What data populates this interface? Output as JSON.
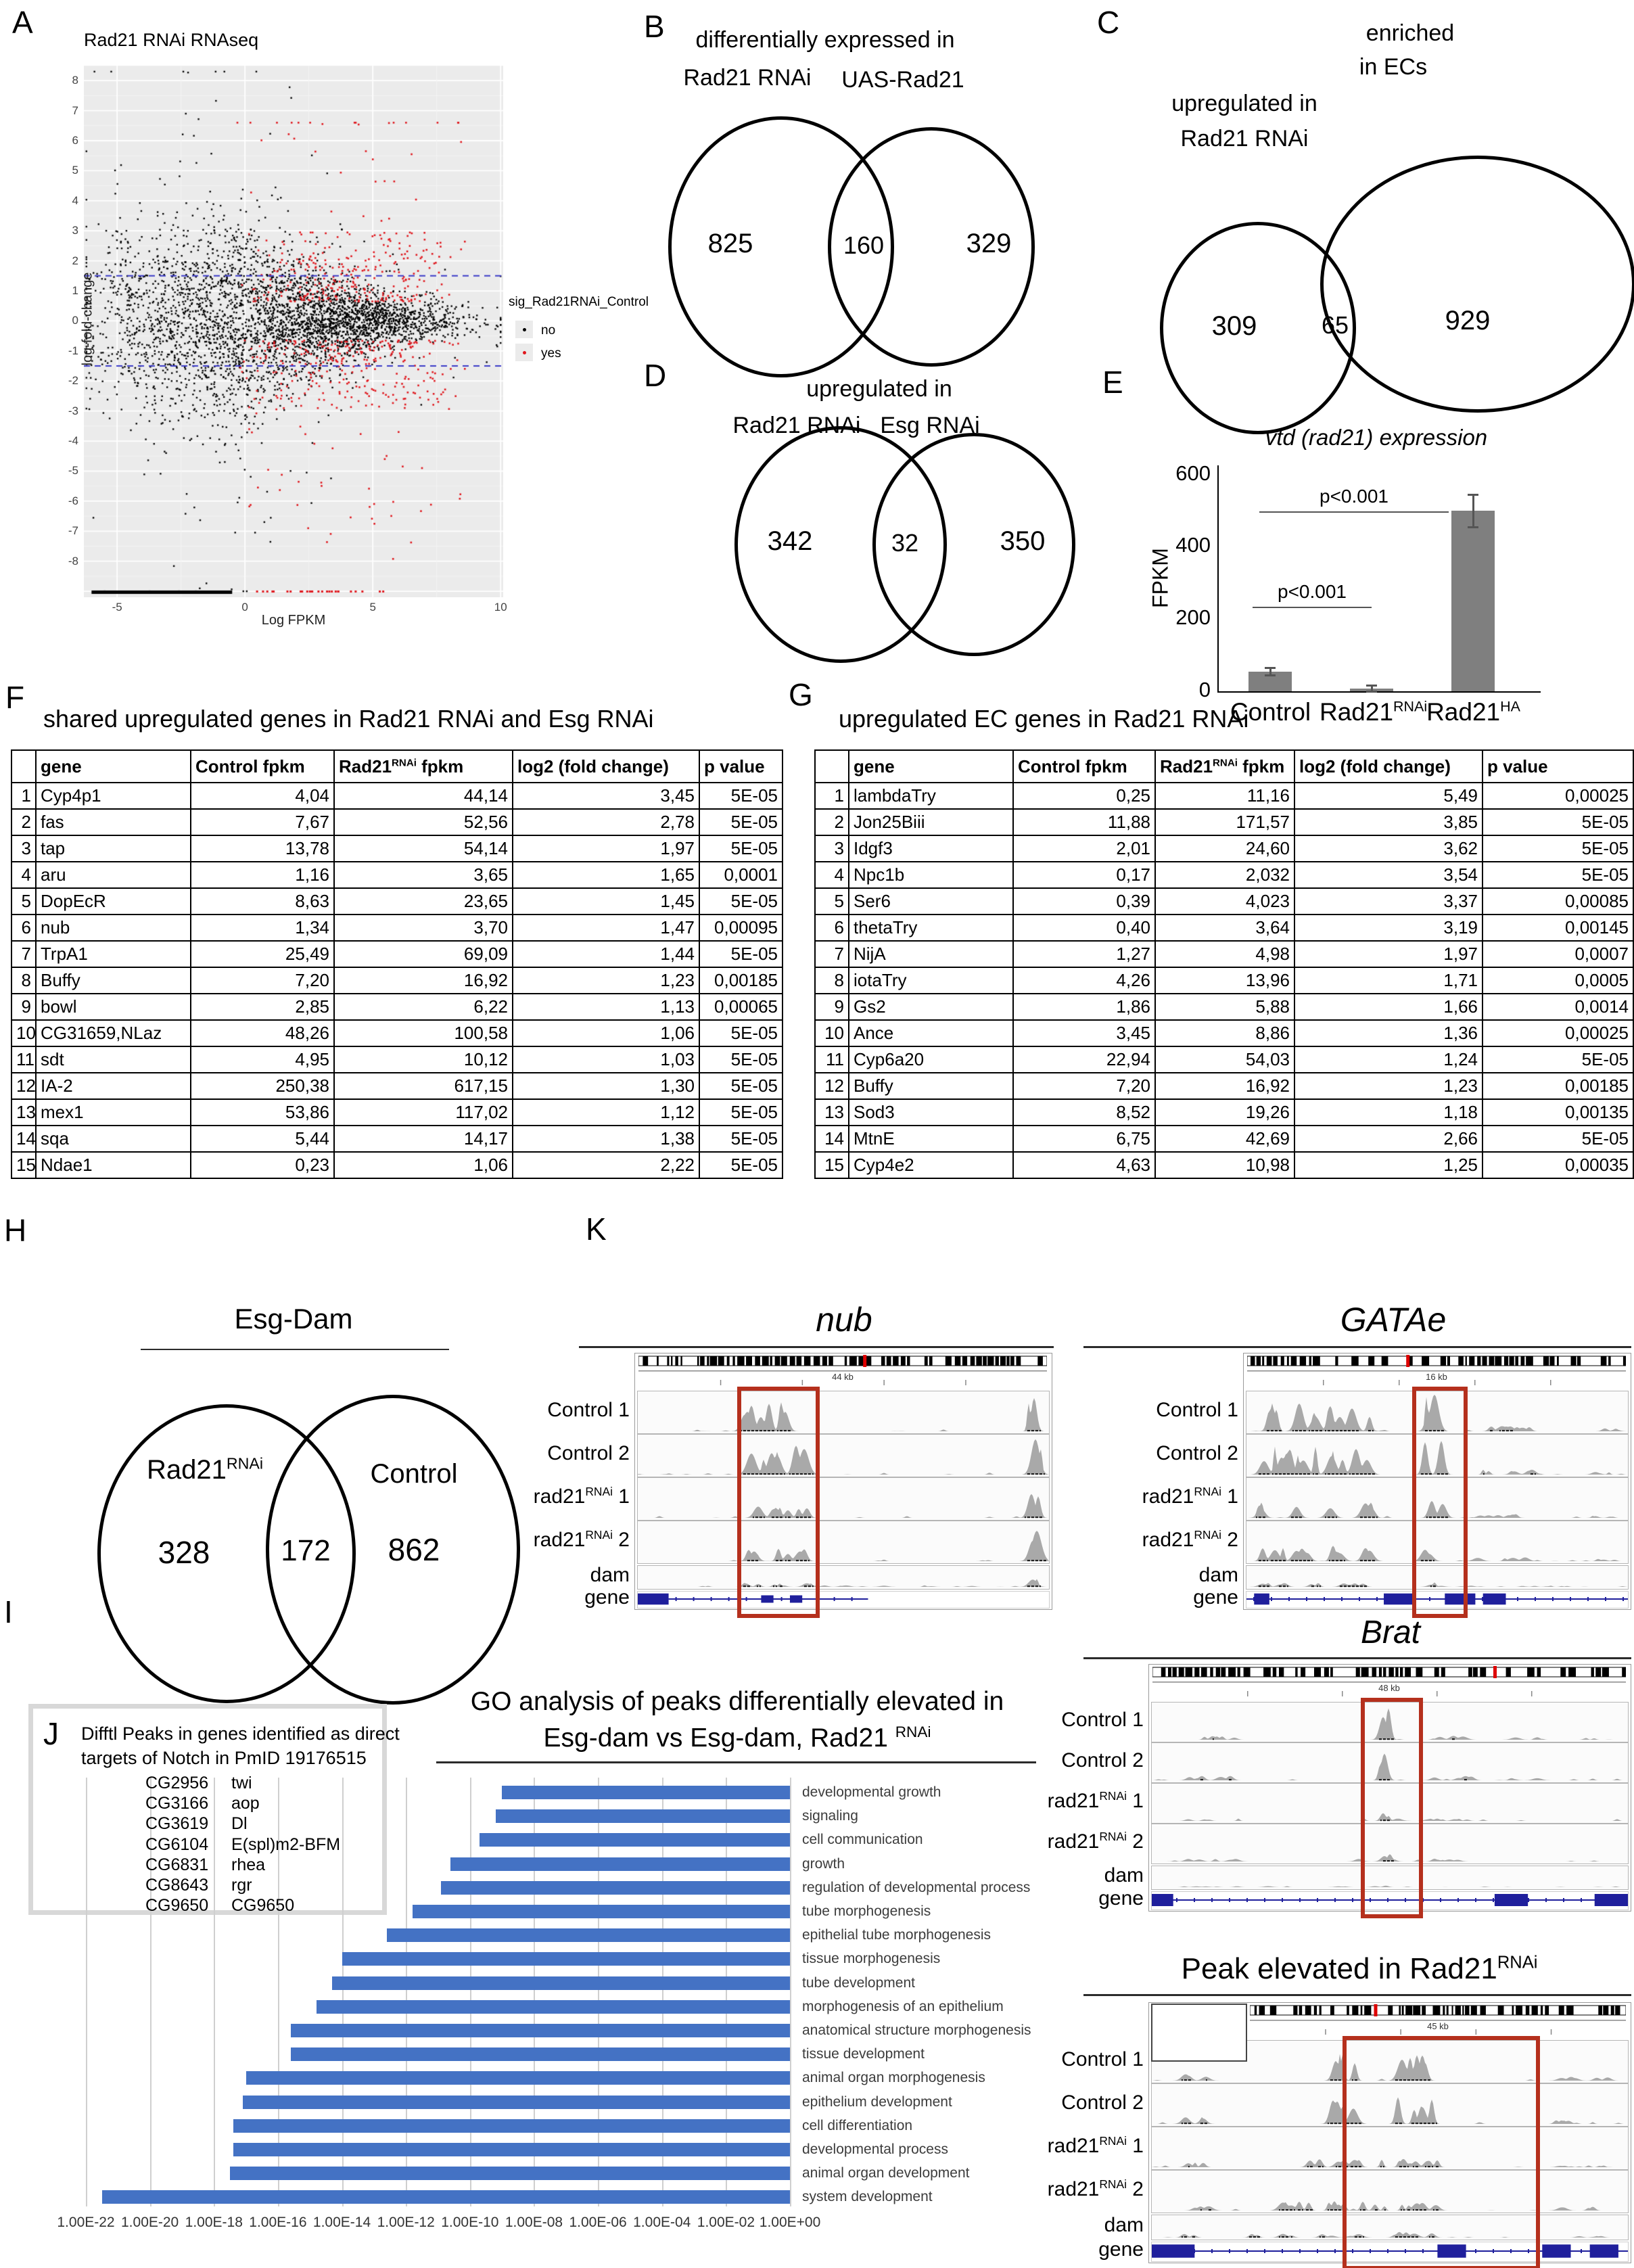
{
  "colors": {
    "go_bar": "#4472c4",
    "scatter_sig": "#e0161c",
    "scatter_ns": "#000000",
    "bar_gray": "#7f7f7f",
    "highlight_red": "#b5301d",
    "gene_blue": "#1f1f9c"
  },
  "panelA": {
    "label": "A",
    "title": "Rad21 RNAi RNAseq",
    "xlabel": "Log FPKM",
    "ylabel": "log-fold-change",
    "x_ticks": [
      -5,
      0,
      5,
      10
    ],
    "y_ticks": [
      8,
      7,
      6,
      5,
      4,
      3,
      2,
      1,
      0,
      -1,
      -2,
      -3,
      -4,
      -5,
      -6,
      -7,
      -8
    ],
    "threshold_lines": [
      1.5,
      -1.5
    ],
    "legend": {
      "title": "sig_Rad21RNAi_Control",
      "items": [
        {
          "label": "no",
          "color": "#000000"
        },
        {
          "label": "yes",
          "color": "#e0161c"
        }
      ]
    }
  },
  "panelB": {
    "label": "B",
    "title": "differentially expressed in",
    "left_label": "Rad21 RNAi",
    "right_label": "UAS-Rad21",
    "left_count": "825",
    "overlap_count": "160",
    "right_count": "329"
  },
  "panelC": {
    "label": "C",
    "right_title_line1": "enriched",
    "right_title_line2": "in ECs",
    "left_title_line1": "upregulated in",
    "left_title_line2": "Rad21 RNAi",
    "left_count": "309",
    "overlap_count": "65",
    "right_count": "929"
  },
  "panelD": {
    "label": "D",
    "title": "upregulated in",
    "left_label": "Rad21 RNAi",
    "right_label": "Esg RNAi",
    "left_count": "342",
    "overlap_count": "32",
    "right_count": "350"
  },
  "panelE": {
    "label": "E",
    "title": "vtd (rad21) expression",
    "ylabel": "FPKM",
    "y_ticks": [
      600,
      400,
      200,
      0
    ],
    "bars": [
      {
        "name": "Control",
        "sup": "",
        "value": 55,
        "error": 10
      },
      {
        "name": "Rad21",
        "sup": "RNAi",
        "value": 8,
        "error": 8
      },
      {
        "name": "Rad21",
        "sup": "HA",
        "value": 500,
        "error": 45
      }
    ],
    "sig_labels": [
      "p<0.001",
      "p<0.001"
    ]
  },
  "tableF": {
    "label": "F",
    "title": "shared upregulated genes in Rad21 RNAi and Esg RNAi",
    "headers": [
      {
        "pre": "gene"
      },
      {
        "pre": "Control fpkm"
      },
      {
        "pre": "Rad21",
        "sup": "RNAi",
        "post": " fpkm"
      },
      {
        "pre": "log2 (fold change)"
      },
      {
        "pre": "p value"
      }
    ],
    "rows": [
      [
        "1",
        "Cyp4p1",
        "4,04",
        "44,14",
        "3,45",
        "5E-05"
      ],
      [
        "2",
        "fas",
        "7,67",
        "52,56",
        "2,78",
        "5E-05"
      ],
      [
        "3",
        "tap",
        "13,78",
        "54,14",
        "1,97",
        "5E-05"
      ],
      [
        "4",
        "aru",
        "1,16",
        "3,65",
        "1,65",
        "0,0001"
      ],
      [
        "5",
        "DopEcR",
        "8,63",
        "23,65",
        "1,45",
        "5E-05"
      ],
      [
        "6",
        "nub",
        "1,34",
        "3,70",
        "1,47",
        "0,00095"
      ],
      [
        "7",
        "TrpA1",
        "25,49",
        "69,09",
        "1,44",
        "5E-05"
      ],
      [
        "8",
        "Buffy",
        "7,20",
        "16,92",
        "1,23",
        "0,00185"
      ],
      [
        "9",
        "bowl",
        "2,85",
        "6,22",
        "1,13",
        "0,00065"
      ],
      [
        "10",
        "CG31659,NLaz",
        "48,26",
        "100,58",
        "1,06",
        "5E-05"
      ],
      [
        "11",
        "sdt",
        "4,95",
        "10,12",
        "1,03",
        "5E-05"
      ],
      [
        "12",
        "IA-2",
        "250,38",
        "617,15",
        "1,30",
        "5E-05"
      ],
      [
        "13",
        "mex1",
        "53,86",
        "117,02",
        "1,12",
        "5E-05"
      ],
      [
        "14",
        "sqa",
        "5,44",
        "14,17",
        "1,38",
        "5E-05"
      ],
      [
        "15",
        "Ndae1",
        "0,23",
        "1,06",
        "2,22",
        "5E-05"
      ]
    ]
  },
  "tableG": {
    "label": "G",
    "title": "upregulated EC genes in Rad21 RNAi",
    "headers": [
      {
        "pre": "gene"
      },
      {
        "pre": "Control fpkm"
      },
      {
        "pre": "Rad21",
        "sup": "RNAi",
        "post": " fpkm"
      },
      {
        "pre": "log2 (fold change)"
      },
      {
        "pre": "p value"
      }
    ],
    "rows": [
      [
        "1",
        "lambdaTry",
        "0,25",
        "11,16",
        "5,49",
        "0,00025"
      ],
      [
        "2",
        "Jon25Biii",
        "11,88",
        "171,57",
        "3,85",
        "5E-05"
      ],
      [
        "3",
        "Idgf3",
        "2,01",
        "24,60",
        "3,62",
        "5E-05"
      ],
      [
        "4",
        "Npc1b",
        "0,17",
        "2,032",
        "3,54",
        "5E-05"
      ],
      [
        "5",
        "Ser6",
        "0,39",
        "4,023",
        "3,37",
        "0,00085"
      ],
      [
        "6",
        "thetaTry",
        "0,40",
        "3,64",
        "3,19",
        "0,00145"
      ],
      [
        "7",
        "NijA",
        "1,27",
        "4,98",
        "1,97",
        "0,0007"
      ],
      [
        "8",
        "iotaTry",
        "4,26",
        "13,96",
        "1,71",
        "0,0005"
      ],
      [
        "9",
        "Gs2",
        "1,86",
        "5,88",
        "1,66",
        "0,0014"
      ],
      [
        "10",
        "Ance",
        "3,45",
        "8,86",
        "1,36",
        "0,00025"
      ],
      [
        "11",
        "Cyp6a20",
        "22,94",
        "54,03",
        "1,24",
        "5E-05"
      ],
      [
        "12",
        "Buffy",
        "7,20",
        "16,92",
        "1,23",
        "0,00185"
      ],
      [
        "13",
        "Sod3",
        "8,52",
        "19,26",
        "1,18",
        "0,00135"
      ],
      [
        "14",
        "MtnE",
        "6,75",
        "42,69",
        "2,66",
        "5E-05"
      ],
      [
        "15",
        "Cyp4e2",
        "4,63",
        "10,98",
        "1,25",
        "0,00035"
      ]
    ]
  },
  "panelH": {
    "label": "H",
    "title": "Esg-Dam",
    "left_label_pre": "Rad21",
    "left_label_sup": "RNAi",
    "right_label": "Control",
    "left_count": "328",
    "overlap_count": "172",
    "right_count": "862"
  },
  "panelK": {
    "label": "K",
    "highlight_color": "#b5301d",
    "track_labels": [
      {
        "text": "Control 1"
      },
      {
        "text": "Control 2"
      },
      {
        "pre": "rad21",
        "sup": "RNAi",
        "post": " 1"
      },
      {
        "pre": "rad21",
        "sup": "RNAi",
        "post": " 2"
      },
      {
        "text": "dam"
      },
      {
        "text": "gene"
      }
    ],
    "browsers": [
      {
        "title": "nub",
        "italic": true,
        "kb_label": "44 kb"
      },
      {
        "title": "GATAe",
        "italic": true,
        "kb_label": "16 kb"
      },
      {
        "title": "Brat",
        "italic": true,
        "kb_label": "48 kb"
      },
      {
        "title_pre": "Peak elevated in Rad21",
        "title_sup": "RNAi",
        "italic": false,
        "kb_label": "45 kb"
      }
    ]
  },
  "panelI": {
    "label": "I",
    "title_line1": "GO analysis of peaks differentially elevated in",
    "title_line2_pre": "Esg-dam vs Esg-dam, Rad21 ",
    "title_line2_sup": "RNAi",
    "bar_color": "#4472c4",
    "categories": [
      "developmental growth",
      "signaling",
      "cell communication",
      "growth",
      "regulation of developmental process",
      "tube morphogenesis",
      "epithelial tube morphogenesis",
      "tissue morphogenesis",
      "tube development",
      "morphogenesis of an epithelium",
      "anatomical structure morphogenesis",
      "tissue development",
      "animal organ morphogenesis",
      "epithelium development",
      "cell differentiation",
      "developmental process",
      "animal organ development",
      "system development"
    ],
    "p_exponents": [
      -9.0,
      -9.2,
      -9.7,
      -10.6,
      -10.9,
      -11.8,
      -12.6,
      -14.0,
      -14.3,
      -14.8,
      -15.6,
      -15.6,
      -17.0,
      -17.1,
      -17.4,
      -17.4,
      -17.5,
      -21.5
    ],
    "x_ticks": [
      "1.00E-22",
      "1.00E-20",
      "1.00E-18",
      "1.00E-16",
      "1.00E-14",
      "1.00E-12",
      "1.00E-10",
      "1.00E-08",
      "1.00E-06",
      "1.00E-04",
      "1.00E-02",
      "1.00E+00"
    ]
  },
  "panelJ": {
    "label": "J",
    "title_line1": "Difftl Peaks in genes identified as direct",
    "title_line2": "targets of Notch in PmID 19176515",
    "genes": [
      {
        "id": "CG2956",
        "name": "twi"
      },
      {
        "id": "CG3166",
        "name": "aop"
      },
      {
        "id": "CG3619",
        "name": "Dl"
      },
      {
        "id": "CG6104",
        "name": "E(spl)m2-BFM"
      },
      {
        "id": "CG6831",
        "name": "rhea"
      },
      {
        "id": "CG8643",
        "name": "rgr"
      },
      {
        "id": "CG9650",
        "name": "CG9650"
      }
    ]
  },
  "chart_data": [
    {
      "id": "A",
      "type": "scatter",
      "title": "Rad21 RNAi RNAseq",
      "xlabel": "Log FPKM",
      "ylabel": "log-fold-change",
      "xlim": [
        -6.3,
        10.1
      ],
      "ylim": [
        -9.2,
        8.5
      ],
      "threshold_lines_y": [
        1.5,
        -1.5
      ],
      "legend": {
        "title": "sig_Rad21RNAi_Control",
        "items": [
          "no",
          "yes"
        ]
      },
      "description": "MA plot: dense black cloud of non-significant genes narrowing at high Log FPKM, red significant genes mostly between |log-fold-change| 0.7-3.5 plus downregulated tail; blue dashed threshold lines at +1.5 and -1.5"
    },
    {
      "id": "B",
      "type": "venn",
      "sets": [
        "Rad21 RNAi",
        "UAS-Rad21"
      ],
      "values": [
        825,
        160,
        329
      ],
      "title": "differentially expressed in"
    },
    {
      "id": "C",
      "type": "venn",
      "sets": [
        "upregulated in Rad21 RNAi",
        "enriched in ECs"
      ],
      "values": [
        309,
        65,
        929
      ]
    },
    {
      "id": "D",
      "type": "venn",
      "sets": [
        "Rad21 RNAi",
        "Esg RNAi"
      ],
      "values": [
        342,
        32,
        350
      ],
      "title": "upregulated in"
    },
    {
      "id": "E",
      "type": "bar",
      "title": "vtd (rad21) expression",
      "categories": [
        "Control",
        "Rad21RNAi",
        "Rad21HA"
      ],
      "values": [
        55,
        8,
        500
      ],
      "errors": [
        10,
        8,
        45
      ],
      "ylabel": "FPKM",
      "ylim": [
        0,
        600
      ],
      "annotations": [
        "p<0.001 Control vs Rad21RNAi",
        "p<0.001 Control vs Rad21HA"
      ]
    },
    {
      "id": "H",
      "type": "venn",
      "sets": [
        "Rad21RNAi",
        "Control"
      ],
      "values": [
        328,
        172,
        862
      ],
      "title": "Esg-Dam"
    },
    {
      "id": "I",
      "type": "bar",
      "orientation": "horizontal",
      "title": "GO analysis of peaks differentially elevated in Esg-dam vs Esg-dam, Rad21RNAi",
      "categories": [
        "developmental growth",
        "signaling",
        "cell communication",
        "growth",
        "regulation of developmental process",
        "tube morphogenesis",
        "epithelial tube morphogenesis",
        "tissue morphogenesis",
        "tube development",
        "morphogenesis of an epithelium",
        "anatomical structure morphogenesis",
        "tissue development",
        "animal organ morphogenesis",
        "epithelium development",
        "cell differentiation",
        "developmental process",
        "animal organ development",
        "system development"
      ],
      "p_values_exponent_log10": [
        -9.0,
        -9.2,
        -9.7,
        -10.6,
        -10.9,
        -11.8,
        -12.6,
        -14.0,
        -14.3,
        -14.8,
        -15.6,
        -15.6,
        -17.0,
        -17.1,
        -17.4,
        -17.4,
        -17.5,
        -21.5
      ],
      "xlim_exponents": [
        -22,
        0
      ],
      "x_ticks": [
        "1.00E-22",
        "1.00E-20",
        "1.00E-18",
        "1.00E-16",
        "1.00E-14",
        "1.00E-12",
        "1.00E-10",
        "1.00E-08",
        "1.00E-06",
        "1.00E-04",
        "1.00E-02",
        "1.00E+00"
      ],
      "note": "bars extend leftward from 1.00E+00; longer bar = smaller p value"
    }
  ]
}
